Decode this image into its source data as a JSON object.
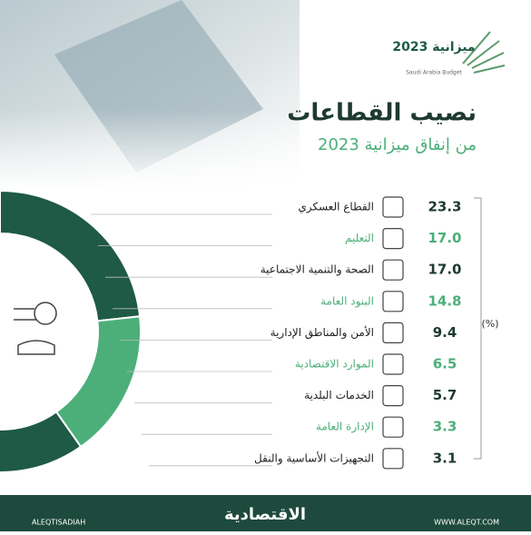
{
  "chart_data": {
    "type": "donut",
    "title": "نصيب القطاعات",
    "subtitle": "من إنفاق ميزانية 2023",
    "unit": "(%)",
    "logo": "ميزانية 2023",
    "logo_sub": "Saudi Arabia Budget",
    "categories": [
      "القطاع العسكري",
      "التعليم",
      "الصحة والتنمية الاجتماعية",
      "البنود العامة",
      "الأمن والمناطق الإدارية",
      "الموارد الاقتصادية",
      "الخدمات البلدية",
      "الإدارة العامة",
      "التجهيزات الأساسية والنقل"
    ],
    "values": [
      23.3,
      17.0,
      17.0,
      14.8,
      9.4,
      6.5,
      5.7,
      3.3,
      3.1
    ],
    "value_labels": [
      "23.3",
      "17.0",
      "17.0",
      "14.8",
      "9.4",
      "6.5",
      "5.7",
      "3.3",
      "3.1"
    ],
    "colors": [
      "#1e5a45",
      "#4caf7a",
      "#1e5a45",
      "#4caf7a",
      "#1e5a45",
      "#4caf7a",
      "#1e5a45",
      "#4caf7a",
      "#1e5a45"
    ],
    "footer": {
      "social": "ALEQTISADIAH",
      "brand": "الاقتصادية",
      "site": "WWW.ALEQT.COM"
    }
  }
}
